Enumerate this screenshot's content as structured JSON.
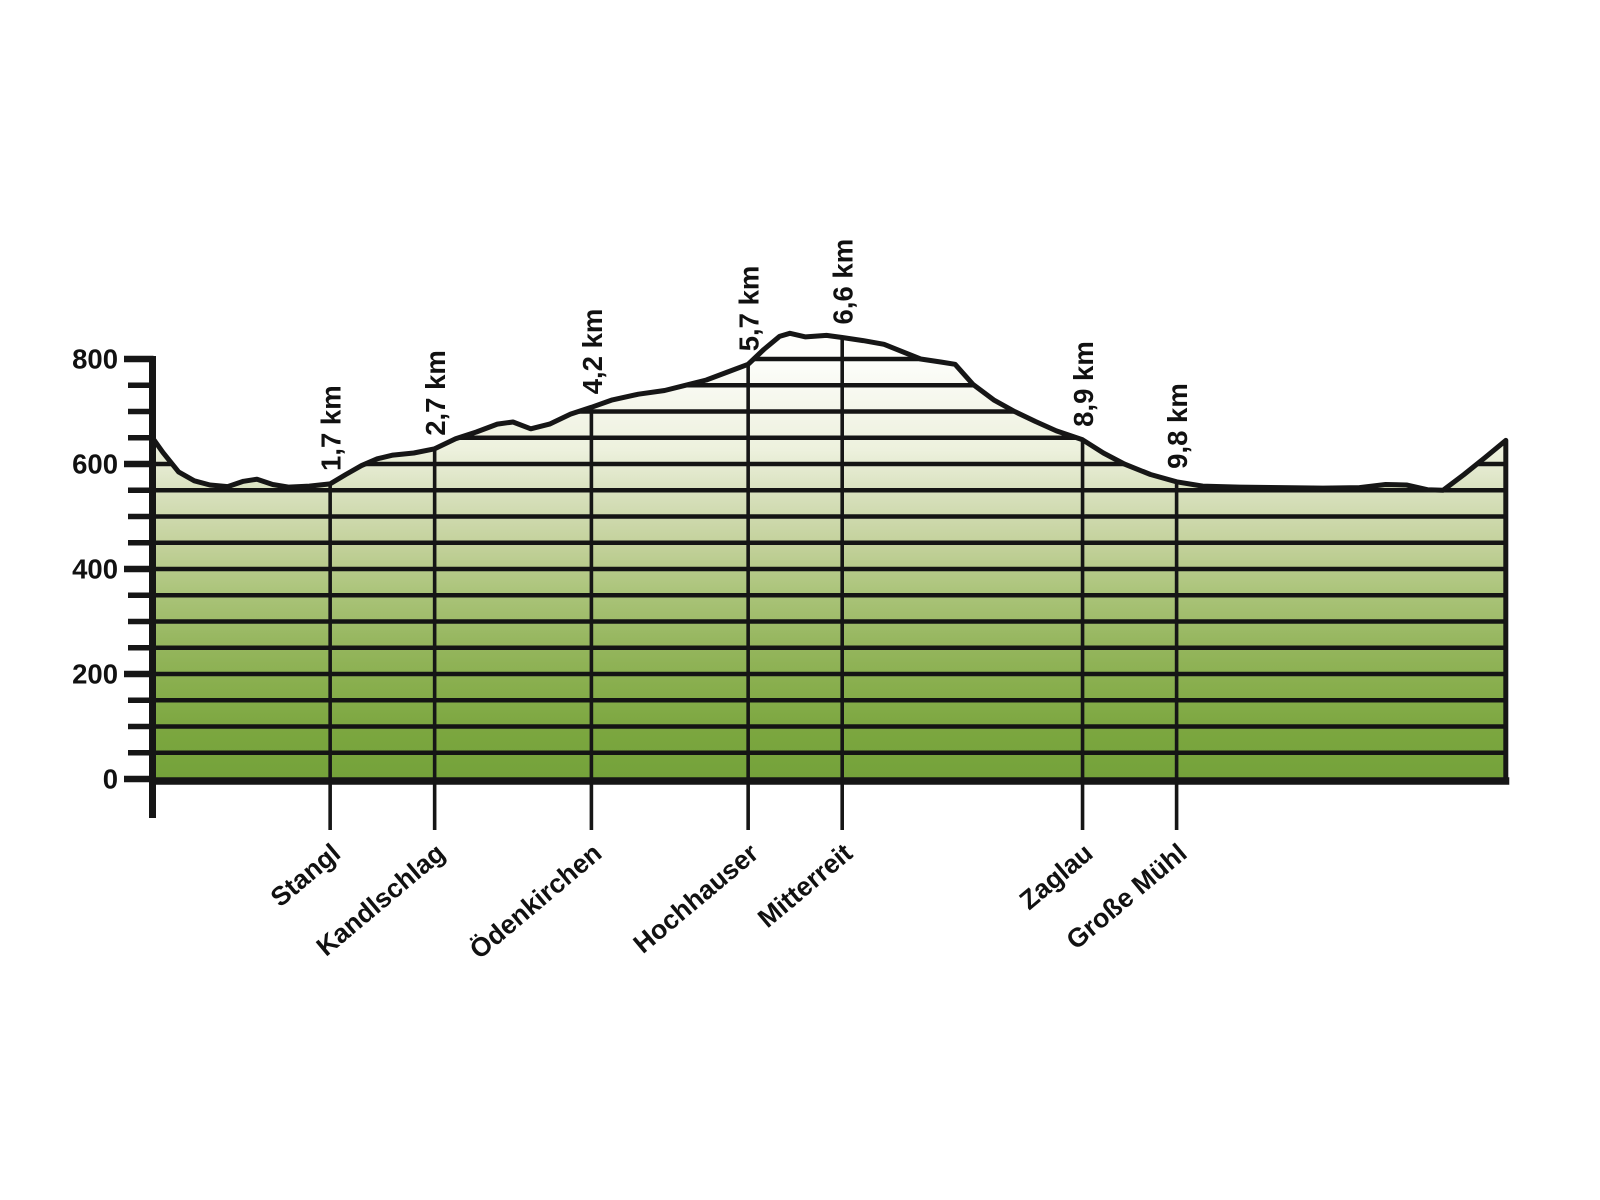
{
  "chart_data": {
    "type": "area",
    "title": "",
    "xlabel": "",
    "ylabel": "",
    "legend": "none",
    "grid": "horizontal lines every 50 m, clipped to the area fill",
    "ylim": [
      0,
      800
    ],
    "y_major_step": 200,
    "y_minor_step": 50,
    "y_tick_labels": [
      {
        "value": 0,
        "label": "0"
      },
      {
        "value": 200,
        "label": "200"
      },
      {
        "value": 400,
        "label": "400"
      },
      {
        "value": 600,
        "label": "600"
      },
      {
        "value": 800,
        "label": "800"
      }
    ],
    "x_range_km": [
      0,
      12.95
    ],
    "waypoints": [
      {
        "km": 1.7,
        "km_label": "1,7 km",
        "name": "Stangl"
      },
      {
        "km": 2.7,
        "km_label": "2,7 km",
        "name": "Kandlschlag"
      },
      {
        "km": 4.2,
        "km_label": "4,2 km",
        "name": "Ödenkirchen"
      },
      {
        "km": 5.7,
        "km_label": "5,7 km",
        "name": "Hochhauser"
      },
      {
        "km": 6.6,
        "km_label": "6,6 km",
        "name": "Mitterreit"
      },
      {
        "km": 8.9,
        "km_label": "8,9 km",
        "name": "Zaglau"
      },
      {
        "km": 9.8,
        "km_label": "9,8 km",
        "name": "Große Mühl"
      }
    ],
    "profile_km_elev_m": [
      [
        0.0,
        650
      ],
      [
        0.1,
        622
      ],
      [
        0.25,
        585
      ],
      [
        0.4,
        568
      ],
      [
        0.55,
        560
      ],
      [
        0.72,
        557
      ],
      [
        0.87,
        567
      ],
      [
        1.0,
        571
      ],
      [
        1.15,
        561
      ],
      [
        1.3,
        556
      ],
      [
        1.5,
        558
      ],
      [
        1.7,
        562
      ],
      [
        1.85,
        580
      ],
      [
        2.0,
        597
      ],
      [
        2.15,
        610
      ],
      [
        2.3,
        617
      ],
      [
        2.5,
        621
      ],
      [
        2.7,
        629
      ],
      [
        2.9,
        648
      ],
      [
        3.1,
        661
      ],
      [
        3.3,
        676
      ],
      [
        3.45,
        680
      ],
      [
        3.62,
        667
      ],
      [
        3.8,
        676
      ],
      [
        4.0,
        695
      ],
      [
        4.2,
        708
      ],
      [
        4.4,
        722
      ],
      [
        4.65,
        733
      ],
      [
        4.9,
        740
      ],
      [
        5.1,
        750
      ],
      [
        5.3,
        760
      ],
      [
        5.5,
        775
      ],
      [
        5.7,
        790
      ],
      [
        5.85,
        818
      ],
      [
        6.0,
        843
      ],
      [
        6.1,
        849
      ],
      [
        6.25,
        842
      ],
      [
        6.45,
        845
      ],
      [
        6.6,
        841
      ],
      [
        6.8,
        835
      ],
      [
        7.0,
        828
      ],
      [
        7.2,
        812
      ],
      [
        7.35,
        800
      ],
      [
        7.55,
        794
      ],
      [
        7.68,
        790
      ],
      [
        7.85,
        752
      ],
      [
        8.05,
        722
      ],
      [
        8.25,
        700
      ],
      [
        8.45,
        681
      ],
      [
        8.65,
        663
      ],
      [
        8.9,
        646
      ],
      [
        9.1,
        621
      ],
      [
        9.3,
        600
      ],
      [
        9.55,
        580
      ],
      [
        9.8,
        566
      ],
      [
        10.05,
        558
      ],
      [
        10.4,
        556
      ],
      [
        10.8,
        555
      ],
      [
        11.2,
        554
      ],
      [
        11.55,
        555
      ],
      [
        11.8,
        561
      ],
      [
        12.0,
        560
      ],
      [
        12.2,
        551
      ],
      [
        12.35,
        550
      ],
      [
        12.55,
        580
      ],
      [
        12.75,
        612
      ],
      [
        12.95,
        645
      ]
    ],
    "colors": {
      "line": "#161616",
      "grid": "#141414",
      "axis": "#161616",
      "text": "#111111",
      "fill_gradient_top": "#fefefc",
      "fill_gradient_stops": [
        "#fefefc",
        "#f5f7ec",
        "#edf1dd",
        "#d6dfba",
        "#c3d19b",
        "#abc47a",
        "#97b760",
        "#88ae4d",
        "#7ba63f",
        "#74a23a"
      ],
      "fill_gradient_bottom": "#74a23a",
      "background": "#ffffff"
    }
  }
}
